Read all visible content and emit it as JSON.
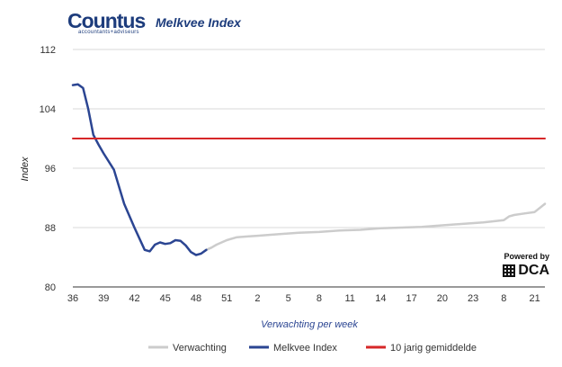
{
  "header": {
    "brand_name": "Countus",
    "brand_sub": "accountants+adviseurs",
    "title": "Melkvee Index"
  },
  "powered": {
    "label": "Powered by",
    "brand": "DCA"
  },
  "chart_data": {
    "type": "line",
    "ylabel": "Index",
    "xlabel": "Verwachting per week",
    "ylim": [
      80,
      112
    ],
    "yticks": [
      80,
      88,
      96,
      104,
      112
    ],
    "xlim": [
      0,
      46
    ],
    "xticks": [
      {
        "i": 0,
        "label": "36"
      },
      {
        "i": 3,
        "label": "39"
      },
      {
        "i": 6,
        "label": "42"
      },
      {
        "i": 9,
        "label": "45"
      },
      {
        "i": 12,
        "label": "48"
      },
      {
        "i": 15,
        "label": "51"
      },
      {
        "i": 18,
        "label": "2"
      },
      {
        "i": 21,
        "label": "5"
      },
      {
        "i": 24,
        "label": "8"
      },
      {
        "i": 27,
        "label": "11"
      },
      {
        "i": 30,
        "label": "14"
      },
      {
        "i": 33,
        "label": "17"
      },
      {
        "i": 36,
        "label": "20"
      },
      {
        "i": 39,
        "label": "23"
      },
      {
        "i": 42,
        "label": "8"
      },
      {
        "i": 45,
        "label": "21"
      }
    ],
    "grid": true,
    "legend_position": "bottom",
    "series": [
      {
        "name": "Verwachting",
        "color": "#cccccc",
        "x": [
          13,
          13.5,
          14,
          15,
          16,
          17,
          18,
          20,
          22,
          24,
          26,
          28,
          30,
          32,
          34,
          36,
          38,
          40,
          42,
          42.5,
          43,
          44,
          45,
          46
        ],
        "y": [
          85.0,
          85.3,
          85.7,
          86.3,
          86.7,
          86.8,
          86.9,
          87.1,
          87.3,
          87.4,
          87.6,
          87.7,
          87.9,
          88.0,
          88.1,
          88.3,
          88.5,
          88.7,
          89.0,
          89.5,
          89.7,
          89.9,
          90.1,
          91.2
        ]
      },
      {
        "name": "Melkvee Index",
        "color": "#2b4592",
        "x": [
          0,
          0.5,
          1,
          1.5,
          2,
          2.5,
          3,
          4,
          5,
          6,
          7,
          7.5,
          8,
          8.5,
          9,
          9.5,
          10,
          10.5,
          11,
          11.5,
          12,
          12.5,
          13
        ],
        "y": [
          107.2,
          107.3,
          106.8,
          104.0,
          100.5,
          99.2,
          98.0,
          95.8,
          91.2,
          88.0,
          85.0,
          84.8,
          85.7,
          86.0,
          85.8,
          85.9,
          86.3,
          86.2,
          85.6,
          84.7,
          84.3,
          84.5,
          85.0
        ]
      },
      {
        "name": "10 jarig gemiddelde",
        "color": "#d62728",
        "x": [
          0,
          46
        ],
        "y": [
          100.0,
          100.0
        ]
      }
    ]
  }
}
